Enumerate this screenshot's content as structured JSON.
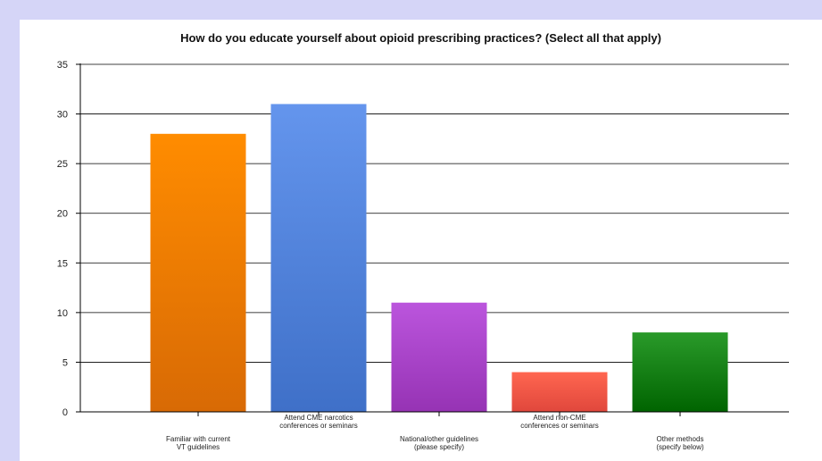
{
  "chart_data": {
    "type": "bar",
    "title": "How do you educate yourself about opioid prescribing practices? (Select all that apply)",
    "categories": [
      [
        "Familiar with current",
        "VT guidelines"
      ],
      [
        "Attend CME narcotics",
        "conferences or seminars"
      ],
      [
        "National/other guidelines",
        "(please specify)"
      ],
      [
        "Attend non-CME",
        "conferences or seminars"
      ],
      [
        "Other methods",
        "(specify below)"
      ]
    ],
    "values": [
      28,
      31,
      11,
      4,
      8
    ],
    "colors": [
      [
        "#ff8c00",
        "#d86a05"
      ],
      [
        "#6495ed",
        "#3f70c8"
      ],
      [
        "#bb55dd",
        "#9633b4"
      ],
      [
        "#ff6650",
        "#e0473c"
      ],
      [
        "#2a9a2a",
        "#006400"
      ]
    ],
    "ylim": [
      0,
      35
    ],
    "yticks": [
      0,
      5,
      10,
      15,
      20,
      25,
      30,
      35
    ],
    "grid": true,
    "legend": "none"
  }
}
